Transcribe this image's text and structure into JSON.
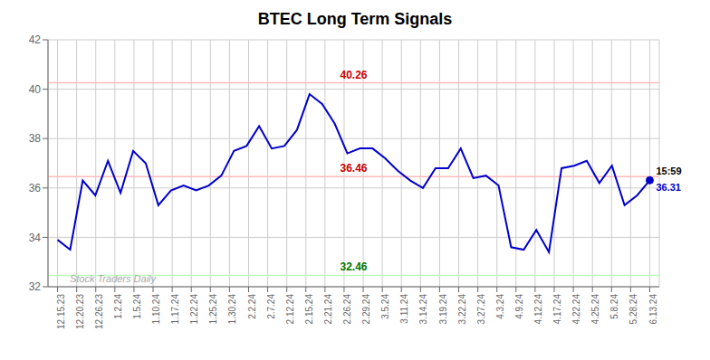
{
  "chart_data": {
    "type": "line",
    "title": "BTEC Long Term Signals",
    "xlim": [
      -0.5,
      31.5
    ],
    "xticks": [
      {
        "value": 0,
        "label": "12.15.23"
      },
      {
        "value": 1,
        "label": "12.20.23"
      },
      {
        "value": 2,
        "label": "12.26.23"
      },
      {
        "value": 3,
        "label": "1.2.24"
      },
      {
        "value": 4,
        "label": "1.5.24"
      },
      {
        "value": 5,
        "label": "1.10.24"
      },
      {
        "value": 6,
        "label": "1.17.24"
      },
      {
        "value": 7,
        "label": "1.22.24"
      },
      {
        "value": 8,
        "label": "1.25.24"
      },
      {
        "value": 9,
        "label": "1.30.24"
      },
      {
        "value": 10,
        "label": "2.2.24"
      },
      {
        "value": 11,
        "label": "2.7.24"
      },
      {
        "value": 12,
        "label": "2.12.24"
      },
      {
        "value": 13,
        "label": "2.15.24"
      },
      {
        "value": 14,
        "label": "2.21.24"
      },
      {
        "value": 15,
        "label": "2.26.24"
      },
      {
        "value": 16,
        "label": "2.29.24"
      },
      {
        "value": 17,
        "label": "3.5.24"
      },
      {
        "value": 18,
        "label": "3.11.24"
      },
      {
        "value": 19,
        "label": "3.14.24"
      },
      {
        "value": 20,
        "label": "3.19.24"
      },
      {
        "value": 21,
        "label": "3.22.24"
      },
      {
        "value": 22,
        "label": "3.27.24"
      },
      {
        "value": 23,
        "label": "4.3.24"
      },
      {
        "value": 24,
        "label": "4.9.24"
      },
      {
        "value": 25,
        "label": "4.12.24"
      },
      {
        "value": 26,
        "label": "4.17.24"
      },
      {
        "value": 27,
        "label": "4.22.24"
      },
      {
        "value": 28,
        "label": "4.25.24"
      },
      {
        "value": 29,
        "label": "5.8.24"
      },
      {
        "value": 30,
        "label": "5.28.24"
      },
      {
        "value": 31,
        "label": "6.13.24"
      }
    ],
    "ylim": [
      32,
      42
    ],
    "yticks": [
      32,
      34,
      36,
      38,
      40,
      42
    ],
    "grid": true,
    "x": [
      0,
      0.659574,
      1.319149,
      1.978723,
      2.638298,
      3.297872,
      3.957447,
      4.617021,
      5.276596,
      5.93617,
      6.595745,
      7.255319,
      7.914894,
      8.574468,
      9.234043,
      9.893617,
      10.553191,
      11.212766,
      11.87234,
      12.531915,
      13.191489,
      13.851064,
      14.510638,
      15.170213,
      15.829787,
      16.489362,
      17.148936,
      17.808511,
      18.468085,
      19.12766,
      19.787234,
      20.446809,
      21.106383,
      21.765957,
      22.425532,
      23.085106,
      23.744681,
      24.404255,
      25.06383,
      25.723404,
      26.382979,
      27.042553,
      27.702128,
      28.361702,
      29.021277,
      29.680851,
      30.340426,
      31
    ],
    "series": [
      {
        "color": "#0000cc",
        "values": [
          33.9,
          33.5,
          36.3,
          35.7,
          37.1,
          35.8,
          37.5,
          37.0,
          35.3,
          35.9,
          36.1,
          35.9,
          36.1,
          36.5,
          37.5,
          37.7,
          38.5,
          37.6,
          37.7,
          38.35,
          39.8,
          39.4,
          38.6,
          37.4,
          37.6,
          37.6,
          37.2,
          36.7,
          36.3,
          36.0,
          36.8,
          36.8,
          37.6,
          36.4,
          36.5,
          36.1,
          33.6,
          33.5,
          34.3,
          33.4,
          36.8,
          36.9,
          37.1,
          36.2,
          36.9,
          35.3,
          35.7,
          36.31
        ]
      }
    ],
    "hlines": [
      {
        "value": 40.26,
        "color": "#ffbbbb",
        "label_color": "#cc0000"
      },
      {
        "value": 36.46,
        "color": "#ffbbbb",
        "label_color": "#cc0000"
      },
      {
        "value": 32.46,
        "color": "#bbffbb",
        "label_color": "#007700"
      }
    ],
    "annotations": [
      {
        "text": "15:59",
        "x": 31,
        "y": 36.31,
        "color": "#000000"
      },
      {
        "text": "36.31",
        "x": 31,
        "y": 36.31,
        "color": "#0000cc"
      },
      {
        "text": "Stock Traders Daily",
        "x": 0.3,
        "y": 32.08,
        "color": "#aaaaaa"
      }
    ]
  }
}
